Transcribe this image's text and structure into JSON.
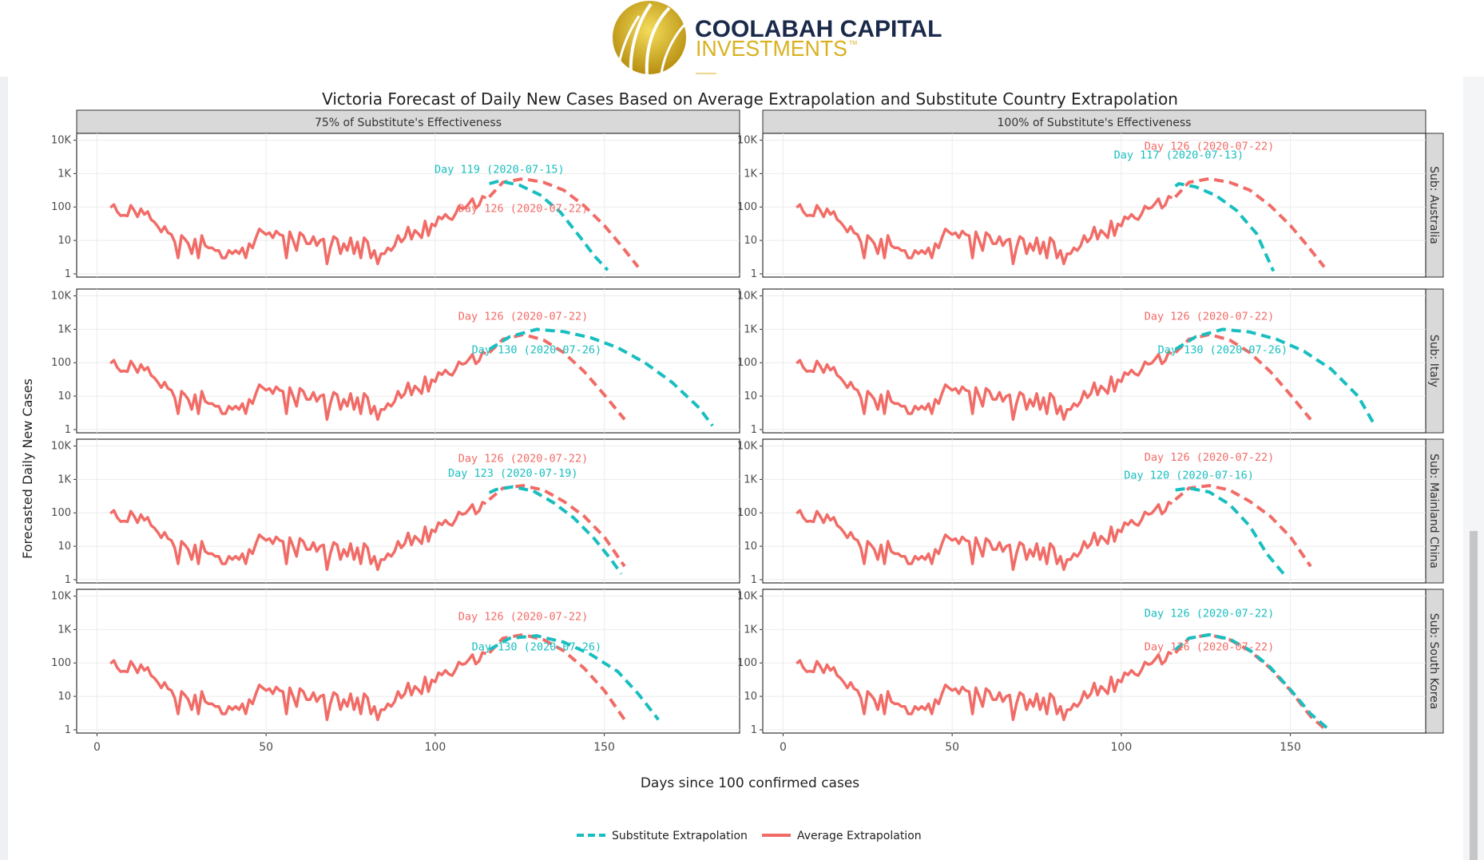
{
  "header": {
    "brand_line1": "COOLABAH CAPITAL",
    "brand_line2": "INVESTMENTS",
    "brand_tm": "TM"
  },
  "colors": {
    "substitute": "#19BEC0",
    "average": "#F16C67",
    "strip_bg": "#D9D9D9",
    "brand_navy": "#1A2A4A",
    "brand_gold": "#D8B11F"
  },
  "chart_data": {
    "type": "line",
    "title": "Victoria Forecast of Daily New Cases Based on Average Extrapolation and Substitute Country Extrapolation",
    "xlabel": "Days since 100 confirmed cases",
    "ylabel": "Forecasted Daily New Cases",
    "y_scale": "log10",
    "xlim": [
      -6,
      190
    ],
    "ylim": [
      0.8,
      16000
    ],
    "x_ticks": [
      0,
      50,
      100,
      150
    ],
    "y_ticks": [
      1,
      10,
      100,
      1000,
      10000
    ],
    "y_tick_labels": [
      "1",
      "10",
      "100",
      "1K",
      "10K"
    ],
    "grid": true,
    "legend_position": "bottom",
    "columns": [
      "75% of Substitute's Effectiveness",
      "100% of Substitute's Effectiveness"
    ],
    "rows": [
      "Sub: Australia",
      "Sub: Italy",
      "Sub: Mainland China",
      "Sub: South Korea"
    ],
    "legend": [
      {
        "key": "substitute",
        "label": "Substitute Extrapolation",
        "style": "dashed"
      },
      {
        "key": "average",
        "label": "Average Extrapolation",
        "style": "solid"
      }
    ],
    "observed": {
      "x": [
        4,
        5,
        6,
        7,
        8,
        9,
        10,
        11,
        12,
        13,
        14,
        15,
        16,
        17,
        18,
        19,
        20,
        21,
        22,
        23,
        24,
        25,
        26,
        27,
        28,
        29,
        30,
        31,
        32,
        33,
        34,
        35,
        36,
        37,
        38,
        39,
        40,
        41,
        42,
        43,
        44,
        45,
        46,
        47,
        48,
        49,
        50,
        51,
        52,
        53,
        54,
        55,
        56,
        57,
        58,
        59,
        60,
        61,
        62,
        63,
        64,
        65,
        66,
        67,
        68,
        69,
        70,
        71,
        72,
        73,
        74,
        75,
        76,
        77,
        78,
        79,
        80,
        81,
        82,
        83,
        84,
        85,
        86,
        87,
        88,
        89,
        90,
        91,
        92,
        93,
        94,
        95,
        96,
        97,
        98,
        99,
        100,
        101,
        102,
        103,
        104,
        105,
        106,
        107,
        108,
        109,
        110,
        111,
        112,
        113,
        114,
        115
      ],
      "y": [
        96,
        118,
        72,
        55,
        57,
        54,
        112,
        79,
        51,
        88,
        60,
        73,
        42,
        35,
        26,
        18,
        26,
        17,
        15,
        9,
        3,
        14,
        11,
        8,
        4,
        11,
        3,
        14,
        7,
        6,
        6,
        5,
        5,
        3,
        3,
        5,
        4,
        5,
        4,
        6,
        3,
        8,
        6,
        12,
        22,
        18,
        15,
        17,
        12,
        19,
        15,
        14,
        3,
        18,
        10,
        5,
        17,
        14,
        8,
        8,
        13,
        7,
        10,
        11,
        2,
        6,
        13,
        11,
        4,
        8,
        5,
        12,
        4,
        9,
        3,
        12,
        9,
        3,
        5,
        2,
        4,
        4,
        6,
        5,
        7,
        14,
        9,
        12,
        25,
        11,
        20,
        16,
        12,
        38,
        14,
        31,
        27,
        51,
        44,
        60,
        47,
        42,
        62,
        106,
        90,
        97,
        128,
        178,
        93,
        115,
        208,
        186
      ]
    },
    "panels": [
      {
        "col": 0,
        "row": 0,
        "average": {
          "x": [
            116,
            120,
            126,
            132,
            138,
            144,
            150,
            155,
            160
          ],
          "y": [
            200,
            550,
            700,
            550,
            320,
            110,
            28,
            7,
            1.6
          ]
        },
        "substitute": {
          "x": [
            116,
            119,
            125,
            131,
            137,
            143,
            147,
            151
          ],
          "y": [
            500,
            600,
            450,
            230,
            70,
            12,
            3.5,
            1.3
          ]
        },
        "labels": [
          {
            "text": "Day 119 (2020-07-15)",
            "series": "substitute",
            "x": 119,
            "y": 1050
          },
          {
            "text": "Day 126 (2020-07-22)",
            "series": "average",
            "x": 126,
            "y": 70
          }
        ]
      },
      {
        "col": 1,
        "row": 0,
        "average": {
          "x": [
            116,
            120,
            126,
            132,
            138,
            144,
            150,
            155,
            160
          ],
          "y": [
            200,
            550,
            700,
            550,
            320,
            110,
            28,
            7,
            1.6
          ]
        },
        "substitute": {
          "x": [
            116,
            117,
            122,
            128,
            134,
            140,
            145
          ],
          "y": [
            420,
            500,
            400,
            220,
            80,
            16,
            1.2
          ]
        },
        "labels": [
          {
            "text": "Day 126 (2020-07-22)",
            "series": "average",
            "x": 126,
            "y": 5200
          },
          {
            "text": "Day 117 (2020-07-13)",
            "series": "substitute",
            "x": 117,
            "y": 2800
          }
        ]
      },
      {
        "col": 0,
        "row": 1,
        "average": {
          "x": [
            116,
            120,
            126,
            132,
            138,
            144,
            150,
            156
          ],
          "y": [
            200,
            500,
            700,
            480,
            200,
            55,
            11,
            2
          ]
        },
        "substitute": {
          "x": [
            116,
            122,
            130,
            138,
            146,
            154,
            162,
            170,
            178,
            182
          ],
          "y": [
            250,
            600,
            1000,
            850,
            560,
            280,
            100,
            26,
            4.5,
            1.3
          ]
        },
        "labels": [
          {
            "text": "Day 126 (2020-07-22)",
            "series": "average",
            "x": 126,
            "y": 1900
          },
          {
            "text": "Day 130 (2020-07-26)",
            "series": "substitute",
            "x": 130,
            "y": 190
          }
        ]
      },
      {
        "col": 1,
        "row": 1,
        "average": {
          "x": [
            116,
            120,
            126,
            132,
            138,
            144,
            150,
            156
          ],
          "y": [
            200,
            500,
            700,
            480,
            200,
            55,
            11,
            2
          ]
        },
        "substitute": {
          "x": [
            116,
            122,
            130,
            138,
            146,
            154,
            162,
            170,
            175
          ],
          "y": [
            250,
            600,
            1000,
            830,
            500,
            220,
            65,
            10,
            1.3
          ]
        },
        "labels": [
          {
            "text": "Day 126 (2020-07-22)",
            "series": "average",
            "x": 126,
            "y": 1900
          },
          {
            "text": "Day 130 (2020-07-26)",
            "series": "substitute",
            "x": 130,
            "y": 190
          }
        ]
      },
      {
        "col": 0,
        "row": 2,
        "average": {
          "x": [
            116,
            120,
            126,
            132,
            138,
            144,
            150,
            156
          ],
          "y": [
            250,
            550,
            650,
            480,
            220,
            80,
            19,
            2.5
          ]
        },
        "substitute": {
          "x": [
            116,
            118,
            123,
            129,
            135,
            141,
            147,
            152,
            155
          ],
          "y": [
            400,
            500,
            600,
            450,
            200,
            70,
            17,
            4,
            1.5
          ]
        },
        "labels": [
          {
            "text": "Day 126 (2020-07-22)",
            "series": "average",
            "x": 126,
            "y": 3300
          },
          {
            "text": "Day 123 (2020-07-19)",
            "series": "substitute",
            "x": 123,
            "y": 1200
          }
        ]
      },
      {
        "col": 1,
        "row": 2,
        "average": {
          "x": [
            116,
            120,
            126,
            132,
            138,
            144,
            150,
            156
          ],
          "y": [
            250,
            550,
            650,
            480,
            220,
            80,
            19,
            2.5
          ]
        },
        "substitute": {
          "x": [
            116,
            120,
            126,
            132,
            138,
            143,
            148
          ],
          "y": [
            480,
            550,
            420,
            180,
            40,
            6,
            1.5
          ]
        },
        "labels": [
          {
            "text": "Day 126 (2020-07-22)",
            "series": "average",
            "x": 126,
            "y": 3600
          },
          {
            "text": "Day 120 (2020-07-16)",
            "series": "substitute",
            "x": 120,
            "y": 1050
          }
        ]
      },
      {
        "col": 0,
        "row": 3,
        "average": {
          "x": [
            116,
            120,
            126,
            132,
            138,
            144,
            150,
            156
          ],
          "y": [
            200,
            550,
            700,
            500,
            230,
            70,
            15,
            2
          ]
        },
        "substitute": {
          "x": [
            116,
            122,
            130,
            138,
            146,
            154,
            160,
            166
          ],
          "y": [
            250,
            550,
            650,
            420,
            180,
            55,
            12,
            2
          ]
        },
        "labels": [
          {
            "text": "Day 126 (2020-07-22)",
            "series": "average",
            "x": 126,
            "y": 1900
          },
          {
            "text": "Day 130 (2020-07-26)",
            "series": "substitute",
            "x": 130,
            "y": 240
          }
        ]
      },
      {
        "col": 1,
        "row": 3,
        "average": {
          "x": [
            116,
            120,
            126,
            132,
            138,
            144,
            150,
            156,
            160
          ],
          "y": [
            200,
            550,
            700,
            500,
            230,
            70,
            15,
            2.5,
            1.1
          ]
        },
        "substitute": {
          "x": [
            116,
            120,
            126,
            132,
            138,
            144,
            150,
            156,
            161
          ],
          "y": [
            250,
            550,
            700,
            520,
            240,
            75,
            16,
            3,
            1.1
          ]
        },
        "labels": [
          {
            "text": "Day 126 (2020-07-22)",
            "series": "substitute",
            "x": 126,
            "y": 2400
          },
          {
            "text": "Day 126 (2020-07-22)",
            "series": "average",
            "x": 126,
            "y": 240
          }
        ]
      }
    ]
  }
}
